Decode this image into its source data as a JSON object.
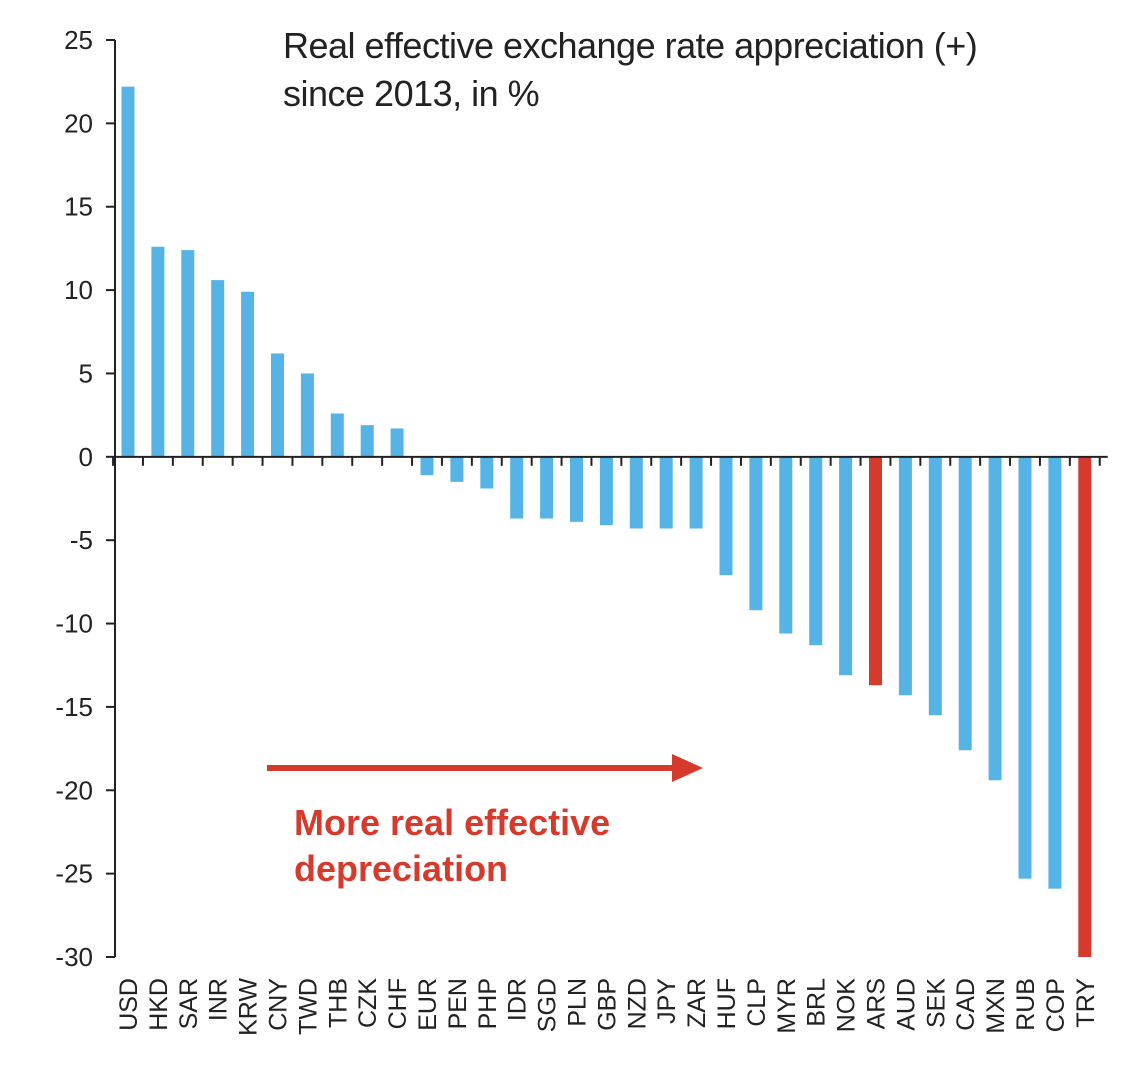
{
  "chart_data": {
    "type": "bar",
    "title_line1": "Real effective exchange rate appreciation (+)",
    "title_line2": "since 2013,  in %",
    "xlabel": "",
    "ylabel": "",
    "ylim": [
      -30,
      25
    ],
    "yticks": [
      25,
      20,
      15,
      10,
      5,
      0,
      -5,
      -10,
      -15,
      -20,
      -25,
      -30
    ],
    "categories": [
      "USD",
      "HKD",
      "SAR",
      "INR",
      "KRW",
      "CNY",
      "TWD",
      "THB",
      "CZK",
      "CHF",
      "EUR",
      "PEN",
      "PHP",
      "IDR",
      "SGD",
      "PLN",
      "GBP",
      "NZD",
      "JPY",
      "ZAR",
      "HUF",
      "CLP",
      "MYR",
      "BRL",
      "NOK",
      "ARS",
      "AUD",
      "SEK",
      "CAD",
      "MXN",
      "RUB",
      "COP",
      "TRY"
    ],
    "values": [
      22.2,
      12.6,
      12.4,
      10.6,
      9.9,
      6.2,
      5.0,
      2.6,
      1.9,
      1.7,
      -1.1,
      -1.5,
      -1.9,
      -3.7,
      -3.7,
      -3.9,
      -4.1,
      -4.3,
      -4.3,
      -4.3,
      -7.1,
      -9.2,
      -10.6,
      -11.3,
      -13.1,
      -13.7,
      -14.3,
      -15.5,
      -17.6,
      -19.4,
      -25.3,
      -25.9,
      -30.0
    ],
    "highlighted": [
      "ARS",
      "TRY"
    ],
    "annotation": {
      "line1": "More real effective",
      "line2": "depreciation",
      "arrow": "right"
    }
  },
  "colors": {
    "bar": "#55b3e6",
    "highlight": "#d63a2c",
    "axis": "#222222",
    "text": "#222222"
  }
}
